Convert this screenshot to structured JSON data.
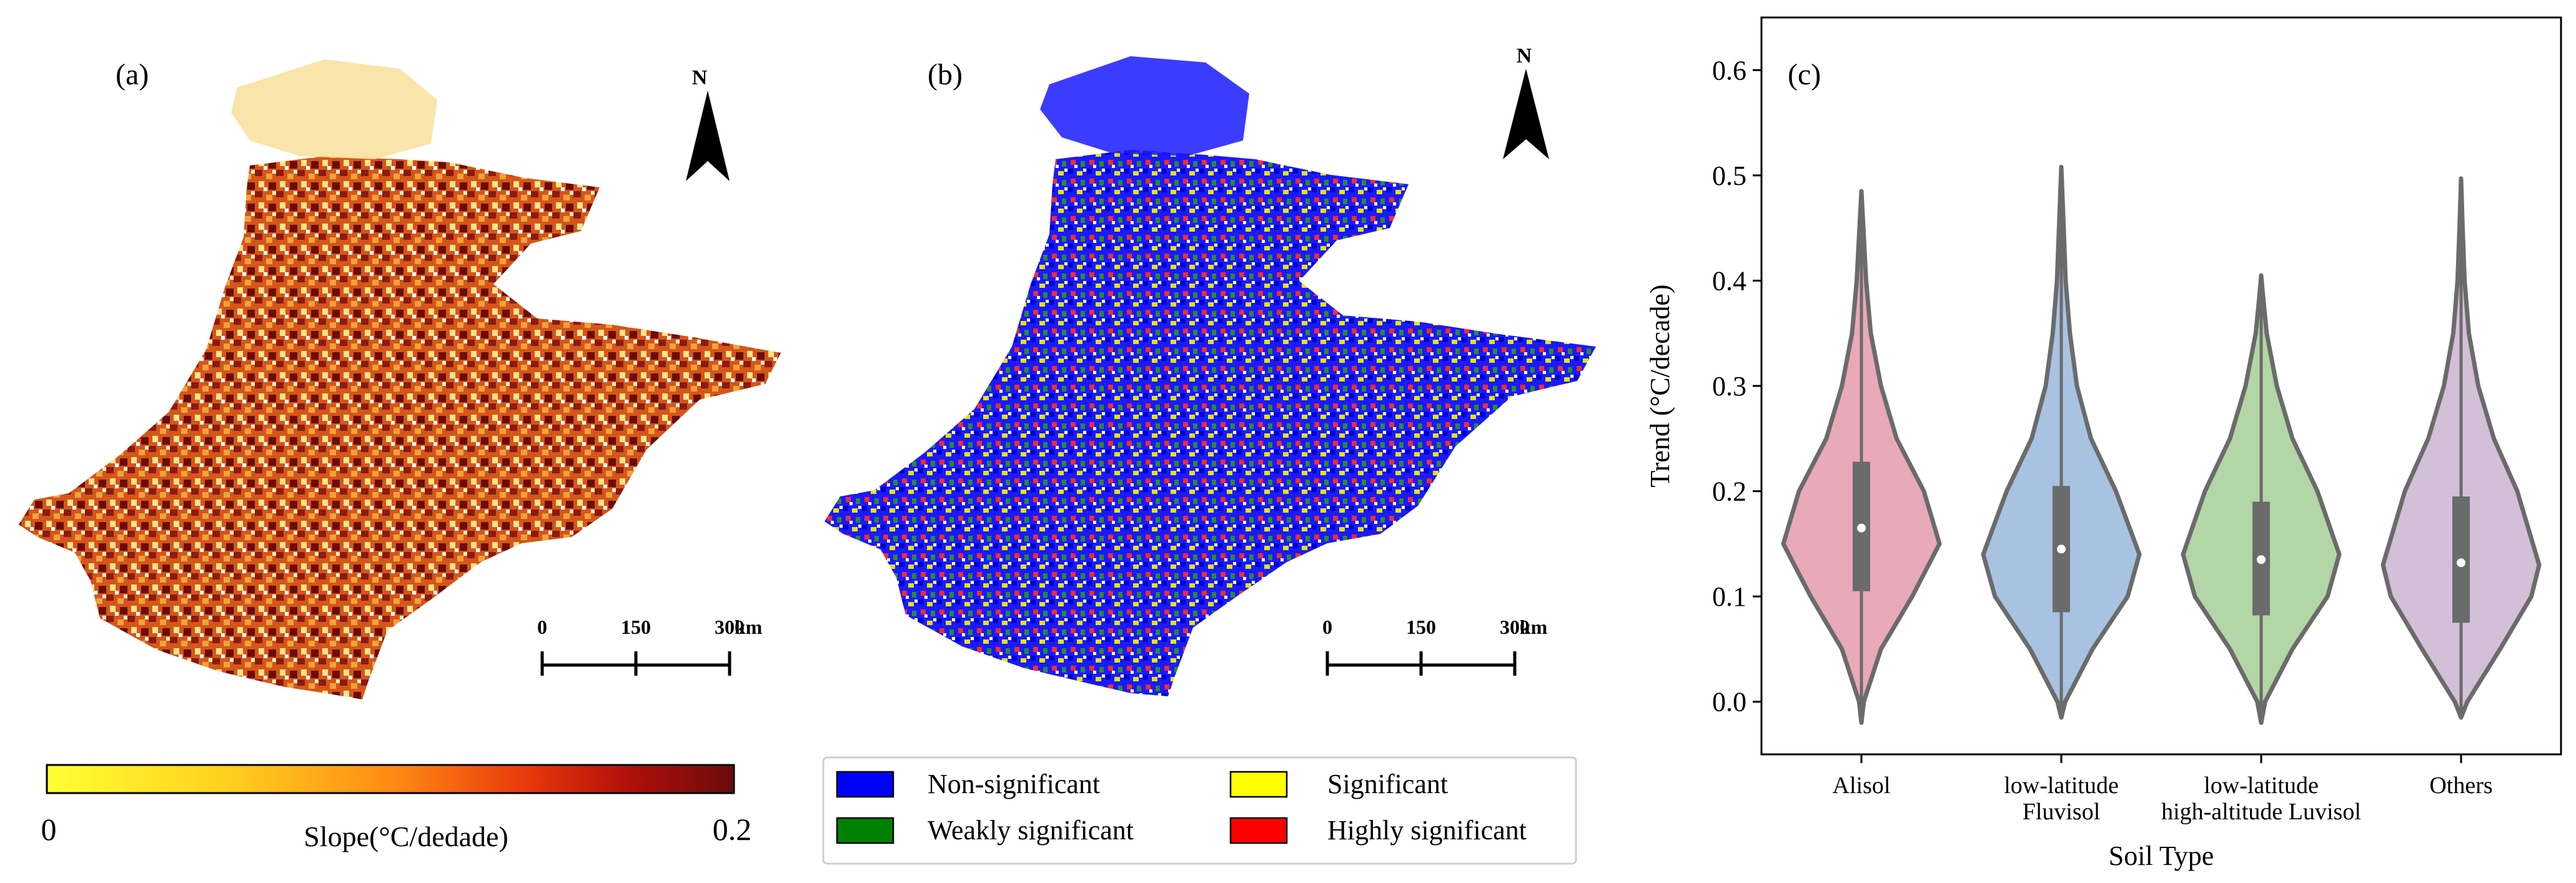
{
  "panel_a": {
    "label": "(a)",
    "north": "N",
    "scale": {
      "ticks": [
        "0",
        "150",
        "300"
      ],
      "unit": "km"
    },
    "colorbar": {
      "min_label": "0",
      "max_label": "0.2",
      "title": "Slope(°C/dedade)",
      "colors": [
        "#ffff33",
        "#ffd21f",
        "#ff8c14",
        "#e8380c",
        "#b00f0a",
        "#6b0c0c"
      ]
    }
  },
  "panel_b": {
    "label": "(b)",
    "north": "N",
    "scale": {
      "ticks": [
        "0",
        "150",
        "300"
      ],
      "unit": "km"
    },
    "legend": [
      {
        "label": "Non-significant",
        "color": "#0000ff"
      },
      {
        "label": "Significant",
        "color": "#ffff00"
      },
      {
        "label": "Weakly significant",
        "color": "#008000"
      },
      {
        "label": "Highly significant",
        "color": "#ff0000"
      }
    ]
  },
  "chart_data": {
    "type": "violin",
    "panel_label": "(c)",
    "xlabel": "Soil Type",
    "ylabel": "Trend (°C/decade)",
    "ylim": [
      -0.05,
      0.65
    ],
    "yticks": [
      0.0,
      0.1,
      0.2,
      0.3,
      0.4,
      0.5,
      0.6
    ],
    "categories": [
      {
        "label": [
          "Alisol"
        ],
        "color": "#e8a9b9",
        "min": -0.02,
        "max": 0.485,
        "q1": 0.105,
        "median": 0.165,
        "q3": 0.228,
        "mode": 0.15,
        "profile": [
          [
            -0.02,
            0.0
          ],
          [
            0.0,
            0.03
          ],
          [
            0.05,
            0.25
          ],
          [
            0.1,
            0.65
          ],
          [
            0.15,
            1.0
          ],
          [
            0.2,
            0.8
          ],
          [
            0.25,
            0.45
          ],
          [
            0.3,
            0.25
          ],
          [
            0.35,
            0.12
          ],
          [
            0.4,
            0.06
          ],
          [
            0.45,
            0.025
          ],
          [
            0.485,
            0.0
          ]
        ]
      },
      {
        "label": [
          "low-latitude",
          "Fluvisol"
        ],
        "color": "#a8c2e2",
        "min": -0.015,
        "max": 0.508,
        "q1": 0.085,
        "median": 0.145,
        "q3": 0.205,
        "mode": 0.14,
        "profile": [
          [
            -0.015,
            0.0
          ],
          [
            0.0,
            0.05
          ],
          [
            0.05,
            0.4
          ],
          [
            0.1,
            0.85
          ],
          [
            0.14,
            1.0
          ],
          [
            0.2,
            0.7
          ],
          [
            0.25,
            0.38
          ],
          [
            0.3,
            0.2
          ],
          [
            0.35,
            0.11
          ],
          [
            0.4,
            0.055
          ],
          [
            0.45,
            0.03
          ],
          [
            0.508,
            0.0
          ]
        ]
      },
      {
        "label": [
          "low-latitude",
          "high-altitude Luvisol"
        ],
        "color": "#b3d6a6",
        "min": -0.02,
        "max": 0.405,
        "q1": 0.082,
        "median": 0.135,
        "q3": 0.19,
        "mode": 0.14,
        "profile": [
          [
            -0.02,
            0.0
          ],
          [
            0.0,
            0.05
          ],
          [
            0.05,
            0.4
          ],
          [
            0.1,
            0.85
          ],
          [
            0.14,
            1.0
          ],
          [
            0.2,
            0.72
          ],
          [
            0.25,
            0.4
          ],
          [
            0.3,
            0.2
          ],
          [
            0.35,
            0.07
          ],
          [
            0.38,
            0.03
          ],
          [
            0.405,
            0.0
          ]
        ]
      },
      {
        "label": [
          "Others"
        ],
        "color": "#d4bfd8",
        "min": -0.015,
        "max": 0.497,
        "q1": 0.075,
        "median": 0.132,
        "q3": 0.195,
        "mode": 0.13,
        "profile": [
          [
            -0.015,
            0.0
          ],
          [
            0.0,
            0.08
          ],
          [
            0.05,
            0.5
          ],
          [
            0.1,
            0.9
          ],
          [
            0.13,
            1.0
          ],
          [
            0.2,
            0.72
          ],
          [
            0.25,
            0.42
          ],
          [
            0.3,
            0.22
          ],
          [
            0.35,
            0.1
          ],
          [
            0.4,
            0.045
          ],
          [
            0.45,
            0.02
          ],
          [
            0.497,
            0.0
          ]
        ]
      }
    ]
  }
}
